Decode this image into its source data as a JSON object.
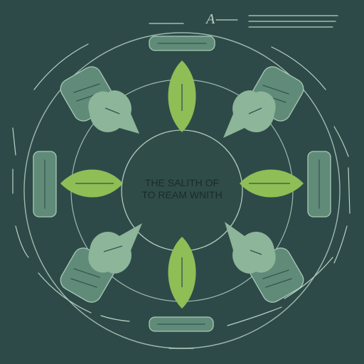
{
  "center": {
    "line1": "THE SALITH OF",
    "line2": "TO REAM WNITH"
  },
  "logo_mark": "A",
  "colors": {
    "background": "#2e4a48",
    "ring": "#9fb9ae",
    "center_disc": "#2f4c49",
    "leaf_bright": "#8fbe57",
    "leaf_pale": "#8db59a",
    "box_fill": "#5f8b78",
    "box_stroke": "#a9c9b7"
  }
}
